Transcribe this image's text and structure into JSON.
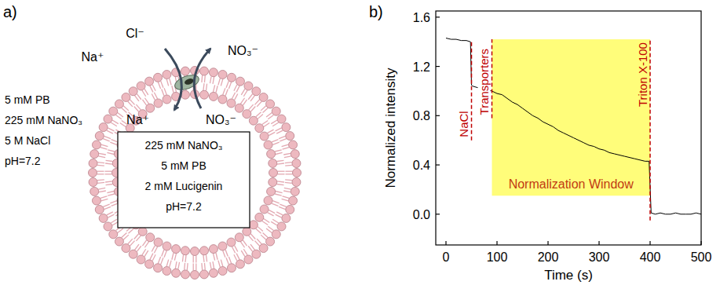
{
  "diagram": {
    "label": "a)",
    "outside_ions": [
      "Na⁺",
      "Cl⁻",
      "NO₃⁻"
    ],
    "inside_ions": [
      "Na⁺",
      "NO₃⁻"
    ],
    "outside_solution": [
      "5 mM PB",
      "225 mM NaNO₃",
      "5 M NaCl",
      "pH=7.2"
    ],
    "inside_solution": [
      "225 mM NaNO₃",
      "5 mM PB",
      "2 mM Lucigenin",
      "pH=7.2"
    ]
  },
  "chart_data": {
    "panel_label": "b)",
    "type": "line",
    "x_label": "Time (s)",
    "y_label": "Normalized intensity",
    "x": [
      0,
      10,
      20,
      30,
      40,
      48,
      50,
      52,
      60,
      70,
      80,
      90,
      100,
      110,
      120,
      130,
      140,
      150,
      160,
      170,
      180,
      190,
      200,
      210,
      220,
      230,
      240,
      250,
      260,
      270,
      280,
      290,
      300,
      310,
      320,
      330,
      340,
      350,
      360,
      370,
      380,
      390,
      398,
      402,
      410,
      420,
      430,
      440,
      450,
      460,
      470,
      480,
      490,
      500
    ],
    "values": [
      1.43,
      1.42,
      1.42,
      1.41,
      1.41,
      1.4,
      1.05,
      1.04,
      1.03,
      1.02,
      1.01,
      1.0,
      0.98,
      0.97,
      0.94,
      0.91,
      0.89,
      0.86,
      0.83,
      0.8,
      0.78,
      0.75,
      0.73,
      0.71,
      0.68,
      0.66,
      0.64,
      0.62,
      0.6,
      0.58,
      0.56,
      0.55,
      0.53,
      0.52,
      0.5,
      0.49,
      0.48,
      0.47,
      0.46,
      0.45,
      0.44,
      0.43,
      0.43,
      0.01,
      0.0,
      0.01,
      0.0,
      0.0,
      0.01,
      0.0,
      0.0,
      0.0,
      0.01,
      0.0
    ],
    "color": "#000000",
    "xlim": [
      -20,
      500
    ],
    "ylim": [
      -0.25,
      1.65
    ],
    "xticks": [
      0,
      100,
      200,
      300,
      400,
      500
    ],
    "yticks": [
      {
        "value": 0,
        "label": "0.0"
      },
      0.4,
      0.8,
      1.2,
      1.6
    ],
    "grid": false,
    "annotations": [
      {
        "text": "NaCl",
        "x": 50,
        "y": [
          0.6,
          1.4
        ]
      },
      {
        "text": "Transporters",
        "x": 90,
        "y": [
          0.78,
          1.42
        ]
      },
      {
        "text": "Triton X-100",
        "x": 400,
        "y": [
          -0.05,
          1.42
        ]
      }
    ],
    "region": {
      "text": "Normalization Window",
      "x": [
        90,
        400
      ],
      "y": [
        0.15,
        1.42
      ],
      "color": "#fffd7a"
    }
  }
}
